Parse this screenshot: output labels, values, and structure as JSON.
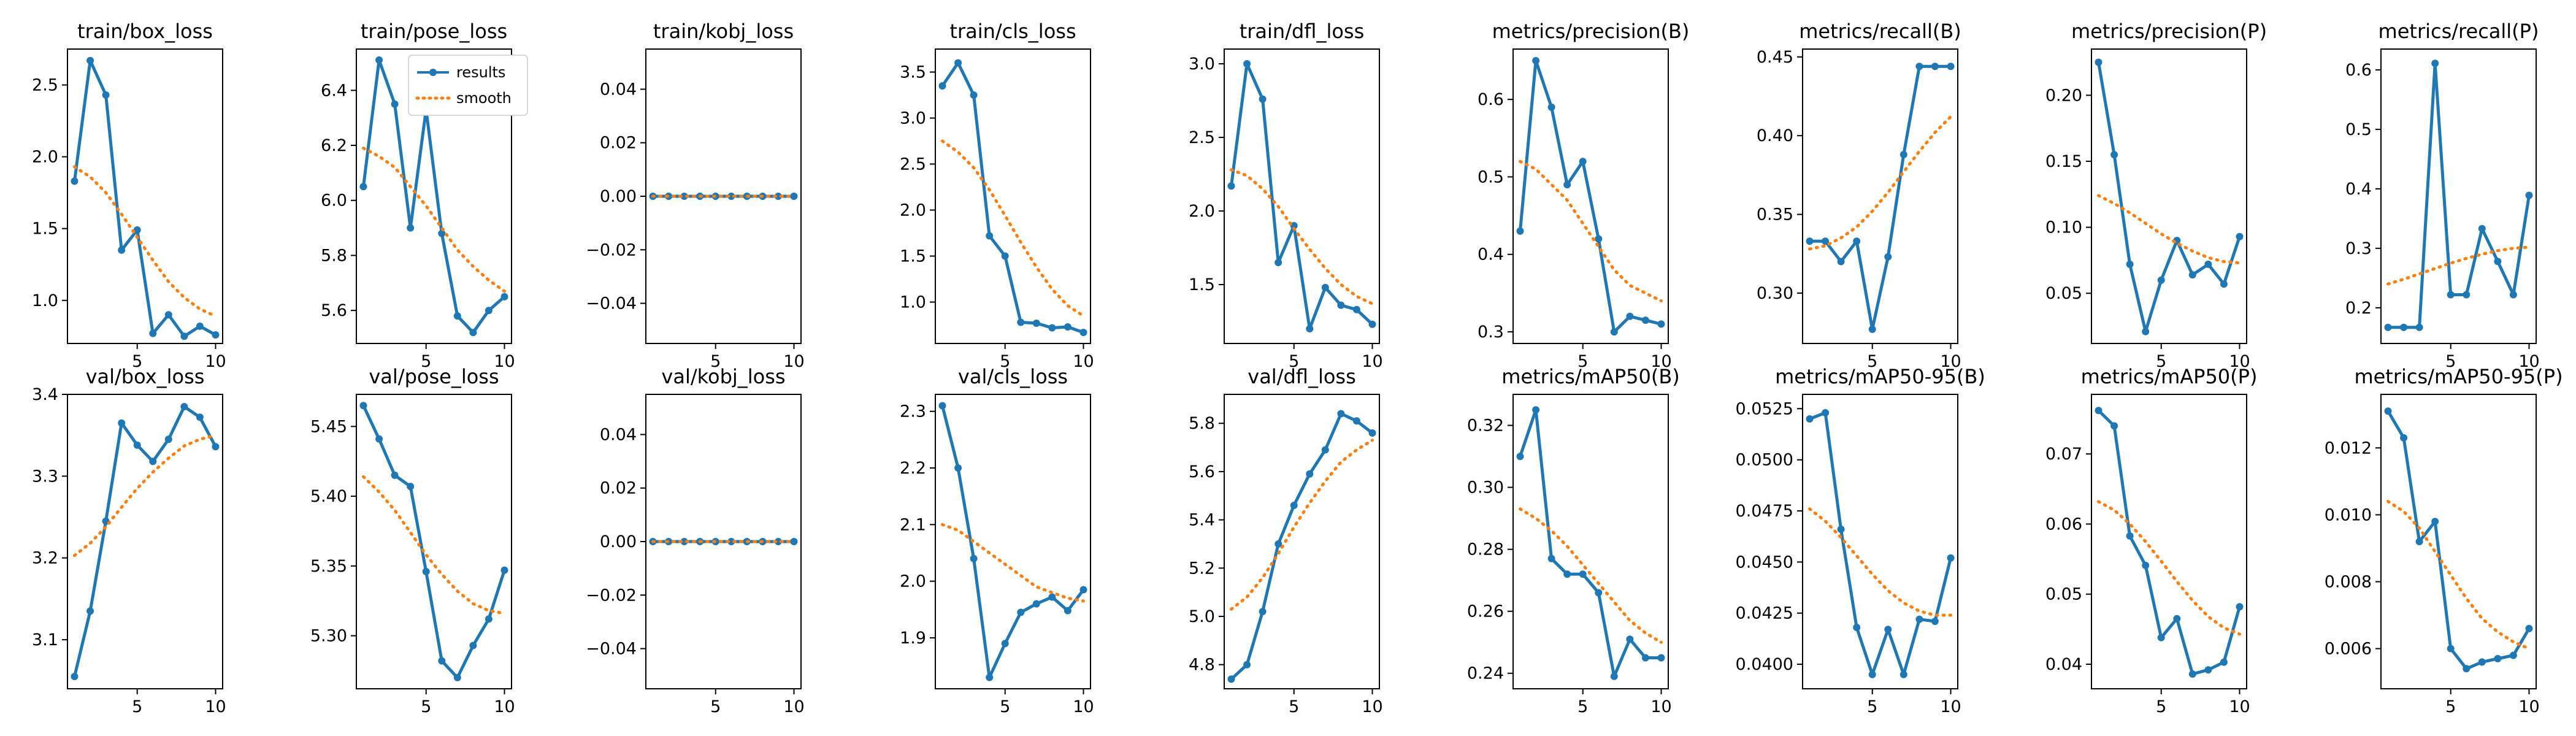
{
  "legend": {
    "results_label": "results",
    "smooth_label": "smooth",
    "placement": "upper-right of train/pose_loss panel"
  },
  "colors": {
    "results": "#1f77b4",
    "smooth": "#ff7f0e",
    "axis": "#000000",
    "background": "#ffffff"
  },
  "chart_data": [
    {
      "type": "line",
      "title": "train/box_loss",
      "x": [
        1,
        2,
        3,
        4,
        5,
        6,
        7,
        8,
        9,
        10
      ],
      "ylim": [
        0.7,
        2.75
      ],
      "yticks": [
        1.0,
        1.5,
        2.0,
        2.5
      ],
      "ytick_labels": [
        "1.0",
        "1.5",
        "2.0",
        "2.5"
      ],
      "series": [
        {
          "name": "results",
          "values": [
            1.83,
            2.67,
            2.43,
            1.35,
            1.49,
            0.77,
            0.9,
            0.75,
            0.82,
            0.76
          ]
        },
        {
          "name": "smooth",
          "values": [
            1.93,
            1.86,
            1.75,
            1.6,
            1.44,
            1.28,
            1.13,
            1.02,
            0.94,
            0.89
          ]
        }
      ]
    },
    {
      "type": "line",
      "title": "train/pose_loss",
      "x": [
        1,
        2,
        3,
        4,
        5,
        6,
        7,
        8,
        9,
        10
      ],
      "ylim": [
        5.48,
        6.55
      ],
      "yticks": [
        5.6,
        5.8,
        6.0,
        6.2,
        6.4
      ],
      "ytick_labels": [
        "5.6",
        "5.8",
        "6.0",
        "6.2",
        "6.4"
      ],
      "series": [
        {
          "name": "results",
          "values": [
            6.05,
            6.51,
            6.35,
            5.9,
            6.33,
            5.88,
            5.58,
            5.52,
            5.6,
            5.65
          ]
        },
        {
          "name": "smooth",
          "values": [
            6.19,
            6.16,
            6.12,
            6.05,
            5.98,
            5.9,
            5.82,
            5.76,
            5.71,
            5.67
          ]
        }
      ]
    },
    {
      "type": "line",
      "title": "train/kobj_loss",
      "x": [
        1,
        2,
        3,
        4,
        5,
        6,
        7,
        8,
        9,
        10
      ],
      "ylim": [
        -0.055,
        0.055
      ],
      "yticks": [
        -0.04,
        -0.02,
        0.0,
        0.02,
        0.04
      ],
      "ytick_labels": [
        "−0.04",
        "−0.02",
        "0.00",
        "0.02",
        "0.04"
      ],
      "series": [
        {
          "name": "results",
          "values": [
            0,
            0,
            0,
            0,
            0,
            0,
            0,
            0,
            0,
            0
          ]
        },
        {
          "name": "smooth",
          "values": [
            0,
            0,
            0,
            0,
            0,
            0,
            0,
            0,
            0,
            0
          ]
        }
      ]
    },
    {
      "type": "line",
      "title": "train/cls_loss",
      "x": [
        1,
        2,
        3,
        4,
        5,
        6,
        7,
        8,
        9,
        10
      ],
      "ylim": [
        0.55,
        3.75
      ],
      "yticks": [
        1.0,
        1.5,
        2.0,
        2.5,
        3.0,
        3.5
      ],
      "ytick_labels": [
        "1.0",
        "1.5",
        "2.0",
        "2.5",
        "3.0",
        "3.5"
      ],
      "series": [
        {
          "name": "results",
          "values": [
            3.35,
            3.6,
            3.25,
            1.72,
            1.5,
            0.78,
            0.77,
            0.72,
            0.73,
            0.67
          ]
        },
        {
          "name": "smooth",
          "values": [
            2.75,
            2.63,
            2.46,
            2.22,
            1.94,
            1.65,
            1.38,
            1.14,
            0.96,
            0.85
          ]
        }
      ]
    },
    {
      "type": "line",
      "title": "train/dfl_loss",
      "x": [
        1,
        2,
        3,
        4,
        5,
        6,
        7,
        8,
        9,
        10
      ],
      "ylim": [
        1.1,
        3.1
      ],
      "yticks": [
        1.5,
        2.0,
        2.5,
        3.0
      ],
      "ytick_labels": [
        "1.5",
        "2.0",
        "2.5",
        "3.0"
      ],
      "series": [
        {
          "name": "results",
          "values": [
            2.17,
            3.0,
            2.76,
            1.65,
            1.9,
            1.2,
            1.48,
            1.36,
            1.33,
            1.23
          ]
        },
        {
          "name": "smooth",
          "values": [
            2.28,
            2.24,
            2.15,
            2.03,
            1.88,
            1.74,
            1.61,
            1.5,
            1.42,
            1.37
          ]
        }
      ]
    },
    {
      "type": "line",
      "title": "metrics/precision(B)",
      "x": [
        1,
        2,
        3,
        4,
        5,
        6,
        7,
        8,
        9,
        10
      ],
      "ylim": [
        0.285,
        0.665
      ],
      "yticks": [
        0.3,
        0.4,
        0.5,
        0.6
      ],
      "ytick_labels": [
        "0.3",
        "0.4",
        "0.5",
        "0.6"
      ],
      "series": [
        {
          "name": "results",
          "values": [
            0.43,
            0.65,
            0.59,
            0.49,
            0.52,
            0.42,
            0.3,
            0.32,
            0.315,
            0.31
          ]
        },
        {
          "name": "smooth",
          "values": [
            0.52,
            0.51,
            0.49,
            0.47,
            0.44,
            0.41,
            0.38,
            0.36,
            0.35,
            0.34
          ]
        }
      ]
    },
    {
      "type": "line",
      "title": "metrics/recall(B)",
      "x": [
        1,
        2,
        3,
        4,
        5,
        6,
        7,
        8,
        9,
        10
      ],
      "ylim": [
        0.268,
        0.455
      ],
      "yticks": [
        0.3,
        0.35,
        0.4,
        0.45
      ],
      "ytick_labels": [
        "0.30",
        "0.35",
        "0.40",
        "0.45"
      ],
      "series": [
        {
          "name": "results",
          "values": [
            0.333,
            0.333,
            0.32,
            0.333,
            0.277,
            0.323,
            0.388,
            0.444,
            0.444,
            0.444
          ]
        },
        {
          "name": "smooth",
          "values": [
            0.328,
            0.33,
            0.335,
            0.342,
            0.352,
            0.364,
            0.377,
            0.39,
            0.402,
            0.412
          ]
        }
      ]
    },
    {
      "type": "line",
      "title": "metrics/precision(P)",
      "x": [
        1,
        2,
        3,
        4,
        5,
        6,
        7,
        8,
        9,
        10
      ],
      "ylim": [
        0.012,
        0.235
      ],
      "yticks": [
        0.05,
        0.1,
        0.15,
        0.2
      ],
      "ytick_labels": [
        "0.05",
        "0.10",
        "0.15",
        "0.20"
      ],
      "series": [
        {
          "name": "results",
          "values": [
            0.225,
            0.155,
            0.072,
            0.021,
            0.06,
            0.09,
            0.064,
            0.072,
            0.057,
            0.093
          ]
        },
        {
          "name": "smooth",
          "values": [
            0.124,
            0.118,
            0.111,
            0.103,
            0.095,
            0.088,
            0.082,
            0.077,
            0.074,
            0.073
          ]
        }
      ]
    },
    {
      "type": "line",
      "title": "metrics/recall(P)",
      "x": [
        1,
        2,
        3,
        4,
        5,
        6,
        7,
        8,
        9,
        10
      ],
      "ylim": [
        0.14,
        0.635
      ],
      "yticks": [
        0.2,
        0.3,
        0.4,
        0.5,
        0.6
      ],
      "ytick_labels": [
        "0.2",
        "0.3",
        "0.4",
        "0.5",
        "0.6"
      ],
      "series": [
        {
          "name": "results",
          "values": [
            0.167,
            0.167,
            0.167,
            0.611,
            0.222,
            0.222,
            0.333,
            0.278,
            0.222,
            0.389
          ]
        },
        {
          "name": "smooth",
          "values": [
            0.24,
            0.248,
            0.257,
            0.266,
            0.275,
            0.283,
            0.29,
            0.296,
            0.3,
            0.302
          ]
        }
      ]
    },
    {
      "type": "line",
      "title": "val/box_loss",
      "x": [
        1,
        2,
        3,
        4,
        5,
        6,
        7,
        8,
        9,
        10
      ],
      "ylim": [
        3.04,
        3.4
      ],
      "yticks": [
        3.1,
        3.2,
        3.3,
        3.4
      ],
      "ytick_labels": [
        "3.1",
        "3.2",
        "3.3",
        "3.4"
      ],
      "series": [
        {
          "name": "results",
          "values": [
            3.055,
            3.135,
            3.245,
            3.365,
            3.338,
            3.318,
            3.345,
            3.385,
            3.372,
            3.336
          ]
        },
        {
          "name": "smooth",
          "values": [
            3.203,
            3.218,
            3.238,
            3.262,
            3.285,
            3.305,
            3.322,
            3.337,
            3.345,
            3.35
          ]
        }
      ]
    },
    {
      "type": "line",
      "title": "val/pose_loss",
      "x": [
        1,
        2,
        3,
        4,
        5,
        6,
        7,
        8,
        9,
        10
      ],
      "ylim": [
        5.262,
        5.473
      ],
      "yticks": [
        5.3,
        5.35,
        5.4,
        5.45
      ],
      "ytick_labels": [
        "5.30",
        "5.35",
        "5.40",
        "5.45"
      ],
      "series": [
        {
          "name": "results",
          "values": [
            5.465,
            5.441,
            5.415,
            5.407,
            5.346,
            5.282,
            5.27,
            5.293,
            5.312,
            5.347
          ]
        },
        {
          "name": "smooth",
          "values": [
            5.414,
            5.403,
            5.39,
            5.374,
            5.358,
            5.344,
            5.332,
            5.323,
            5.318,
            5.316
          ]
        }
      ]
    },
    {
      "type": "line",
      "title": "val/kobj_loss",
      "x": [
        1,
        2,
        3,
        4,
        5,
        6,
        7,
        8,
        9,
        10
      ],
      "ylim": [
        -0.055,
        0.055
      ],
      "yticks": [
        -0.04,
        -0.02,
        0.0,
        0.02,
        0.04
      ],
      "ytick_labels": [
        "−0.04",
        "−0.02",
        "0.00",
        "0.02",
        "0.04"
      ],
      "series": [
        {
          "name": "results",
          "values": [
            0,
            0,
            0,
            0,
            0,
            0,
            0,
            0,
            0,
            0
          ]
        },
        {
          "name": "smooth",
          "values": [
            0,
            0,
            0,
            0,
            0,
            0,
            0,
            0,
            0,
            0
          ]
        }
      ]
    },
    {
      "type": "line",
      "title": "val/cls_loss",
      "x": [
        1,
        2,
        3,
        4,
        5,
        6,
        7,
        8,
        9,
        10
      ],
      "ylim": [
        1.81,
        2.33
      ],
      "yticks": [
        1.9,
        2.0,
        2.1,
        2.2,
        2.3
      ],
      "ytick_labels": [
        "1.9",
        "2.0",
        "2.1",
        "2.2",
        "2.3"
      ],
      "series": [
        {
          "name": "results",
          "values": [
            2.31,
            2.2,
            2.04,
            1.83,
            1.89,
            1.945,
            1.96,
            1.972,
            1.948,
            1.985
          ]
        },
        {
          "name": "smooth",
          "values": [
            2.1,
            2.09,
            2.07,
            2.05,
            2.03,
            2.01,
            1.99,
            1.98,
            1.97,
            1.965
          ]
        }
      ]
    },
    {
      "type": "line",
      "title": "val/dfl_loss",
      "x": [
        1,
        2,
        3,
        4,
        5,
        6,
        7,
        8,
        9,
        10
      ],
      "ylim": [
        4.7,
        5.92
      ],
      "yticks": [
        4.8,
        5.0,
        5.2,
        5.4,
        5.6,
        5.8
      ],
      "ytick_labels": [
        "4.8",
        "5.0",
        "5.2",
        "5.4",
        "5.6",
        "5.8"
      ],
      "series": [
        {
          "name": "results",
          "values": [
            4.74,
            4.8,
            5.02,
            5.3,
            5.46,
            5.59,
            5.69,
            5.84,
            5.81,
            5.76
          ]
        },
        {
          "name": "smooth",
          "values": [
            5.03,
            5.08,
            5.16,
            5.26,
            5.37,
            5.47,
            5.56,
            5.64,
            5.69,
            5.73
          ]
        }
      ]
    },
    {
      "type": "line",
      "title": "metrics/mAP50(B)",
      "x": [
        1,
        2,
        3,
        4,
        5,
        6,
        7,
        8,
        9,
        10
      ],
      "ylim": [
        0.235,
        0.33
      ],
      "yticks": [
        0.24,
        0.26,
        0.28,
        0.3,
        0.32
      ],
      "ytick_labels": [
        "0.24",
        "0.26",
        "0.28",
        "0.30",
        "0.32"
      ],
      "series": [
        {
          "name": "results",
          "values": [
            0.31,
            0.325,
            0.277,
            0.272,
            0.272,
            0.266,
            0.239,
            0.251,
            0.245,
            0.245
          ]
        },
        {
          "name": "smooth",
          "values": [
            0.293,
            0.29,
            0.286,
            0.281,
            0.275,
            0.269,
            0.263,
            0.257,
            0.253,
            0.25
          ]
        }
      ]
    },
    {
      "type": "line",
      "title": "metrics/mAP50-95(B)",
      "x": [
        1,
        2,
        3,
        4,
        5,
        6,
        7,
        8,
        9,
        10
      ],
      "ylim": [
        0.0388,
        0.0532
      ],
      "yticks": [
        0.04,
        0.0425,
        0.045,
        0.0475,
        0.05,
        0.0525
      ],
      "ytick_labels": [
        "0.0400",
        "0.0425",
        "0.0450",
        "0.0475",
        "0.0500",
        "0.0525"
      ],
      "series": [
        {
          "name": "results",
          "values": [
            0.052,
            0.0523,
            0.0466,
            0.0418,
            0.0395,
            0.0417,
            0.0395,
            0.0422,
            0.0421,
            0.0452
          ]
        },
        {
          "name": "smooth",
          "values": [
            0.0476,
            0.047,
            0.0462,
            0.0453,
            0.0444,
            0.0436,
            0.043,
            0.0426,
            0.0424,
            0.0424
          ]
        }
      ]
    },
    {
      "type": "line",
      "title": "metrics/mAP50(P)",
      "x": [
        1,
        2,
        3,
        4,
        5,
        6,
        7,
        8,
        9,
        10
      ],
      "ylim": [
        0.0365,
        0.0785
      ],
      "yticks": [
        0.04,
        0.05,
        0.06,
        0.07
      ],
      "ytick_labels": [
        "0.04",
        "0.05",
        "0.06",
        "0.07"
      ],
      "series": [
        {
          "name": "results",
          "values": [
            0.0762,
            0.074,
            0.0583,
            0.0541,
            0.0438,
            0.0465,
            0.0386,
            0.0392,
            0.0403,
            0.0482
          ]
        },
        {
          "name": "smooth",
          "values": [
            0.0632,
            0.062,
            0.06,
            0.0575,
            0.0547,
            0.0518,
            0.0491,
            0.0468,
            0.0452,
            0.0443
          ]
        }
      ]
    },
    {
      "type": "line",
      "title": "metrics/mAP50-95(P)",
      "x": [
        1,
        2,
        3,
        4,
        5,
        6,
        7,
        8,
        9,
        10
      ],
      "ylim": [
        0.0048,
        0.0136
      ],
      "yticks": [
        0.006,
        0.008,
        0.01,
        0.012
      ],
      "ytick_labels": [
        "0.006",
        "0.008",
        "0.010",
        "0.012"
      ],
      "series": [
        {
          "name": "results",
          "values": [
            0.0131,
            0.0123,
            0.0092,
            0.0098,
            0.006,
            0.0054,
            0.0056,
            0.0057,
            0.0058,
            0.0066
          ]
        },
        {
          "name": "smooth",
          "values": [
            0.0104,
            0.0101,
            0.0096,
            0.0089,
            0.0082,
            0.0075,
            0.0069,
            0.0065,
            0.0062,
            0.006
          ]
        }
      ]
    }
  ]
}
